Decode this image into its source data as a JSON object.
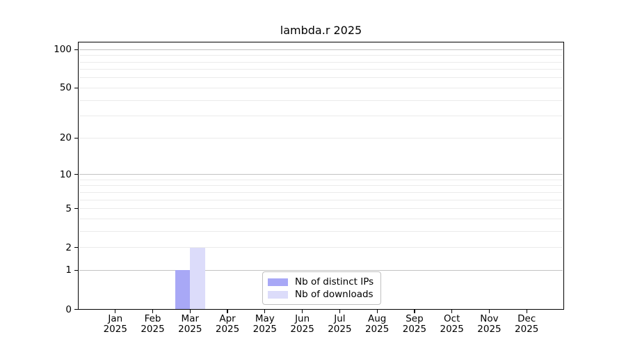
{
  "title": "lambda.r 2025",
  "chart_data": {
    "type": "bar",
    "title": "lambda.r 2025",
    "categories": [
      "Jan",
      "Feb",
      "Mar",
      "Apr",
      "May",
      "Jun",
      "Jul",
      "Aug",
      "Sep",
      "Oct",
      "Nov",
      "Dec"
    ],
    "category_year": "2025",
    "series": [
      {
        "name": "Nb of distinct IPs",
        "color": "#a8a8f6",
        "values": [
          0,
          0,
          1,
          0,
          0,
          0,
          0,
          0,
          0,
          0,
          0,
          0
        ]
      },
      {
        "name": "Nb of downloads",
        "color": "#dcdcfa",
        "values": [
          0,
          0,
          2,
          0,
          0,
          0,
          0,
          0,
          0,
          0,
          0,
          0
        ]
      }
    ],
    "xlabel": "",
    "ylabel": "",
    "y_ticks": [
      0,
      1,
      2,
      5,
      10,
      20,
      50,
      100
    ],
    "y_scale": "log10(1+value)",
    "y_max": 115,
    "grid": {
      "major": [
        1,
        10,
        100
      ],
      "minor": [
        2,
        3,
        4,
        5,
        6,
        7,
        8,
        9,
        20,
        30,
        40,
        50,
        60,
        70,
        80,
        90
      ]
    },
    "legend_position": "lower center"
  },
  "colors": {
    "bar_distinct_ips": "#a8a8f6",
    "bar_downloads": "#dcdcfa",
    "grid_major": "#c3c3c3",
    "grid_minor": "#ebebeb",
    "axis": "#000000",
    "text": "#000000",
    "legend_border": "#c0c0c0",
    "background": "#ffffff"
  }
}
